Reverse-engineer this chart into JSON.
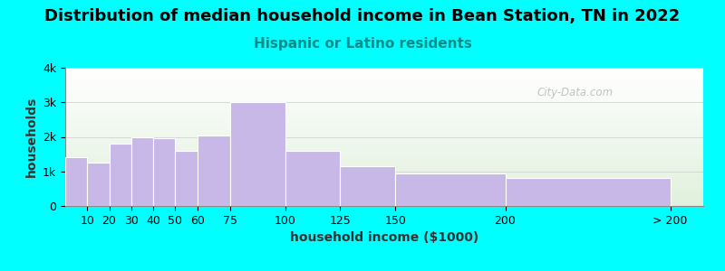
{
  "title": "Distribution of median household income in Bean Station, TN in 2022",
  "subtitle": "Hispanic or Latino residents",
  "xlabel": "household income ($1000)",
  "ylabel": "households",
  "background_color": "#00FFFF",
  "plot_bg_gradient_top": "#e0f0dc",
  "plot_bg_gradient_bottom": "#ffffff",
  "bar_color": "#c8b8e8",
  "bar_edge_color": "#ffffff",
  "values": [
    1400,
    1250,
    1800,
    2000,
    1950,
    1600,
    2050,
    3000,
    1600,
    1150,
    950,
    800
  ],
  "bar_lefts": [
    0,
    10,
    20,
    30,
    40,
    50,
    60,
    75,
    100,
    125,
    150,
    200
  ],
  "bar_widths": [
    10,
    10,
    10,
    10,
    10,
    10,
    15,
    25,
    25,
    25,
    50,
    75
  ],
  "xtick_pos": [
    10,
    20,
    30,
    40,
    50,
    60,
    75,
    100,
    125,
    150,
    200,
    275
  ],
  "xtick_labels": [
    "10",
    "20",
    "30",
    "40",
    "50",
    "60",
    "75",
    "100",
    "125",
    "150",
    "200",
    "> 200"
  ],
  "ylim": [
    0,
    4000
  ],
  "xlim": [
    0,
    290
  ],
  "yticks": [
    0,
    1000,
    2000,
    3000,
    4000
  ],
  "ytick_labels": [
    "0",
    "1k",
    "2k",
    "3k",
    "4k"
  ],
  "title_fontsize": 13,
  "subtitle_fontsize": 11,
  "axis_label_fontsize": 10,
  "tick_fontsize": 9,
  "subtitle_color": "#008B8B",
  "title_color": "#000000",
  "watermark_text": "City-Data.com",
  "watermark_color": "#aaaaaa"
}
